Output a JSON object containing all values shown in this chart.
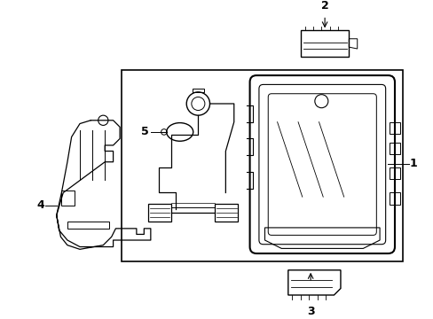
{
  "bg_color": "#ffffff",
  "lc": "#000000",
  "fig_width": 4.89,
  "fig_height": 3.6,
  "dpi": 100
}
